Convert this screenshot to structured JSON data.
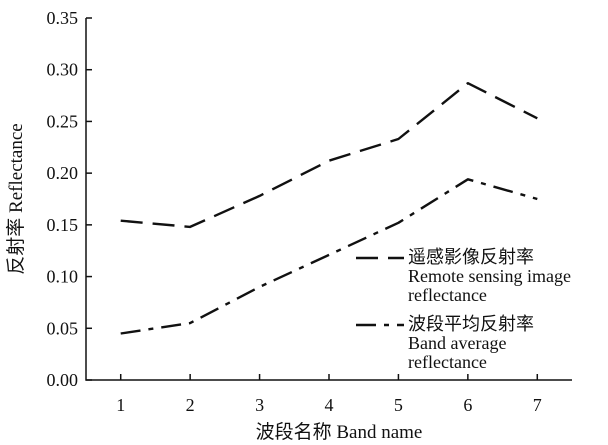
{
  "chart_data": {
    "type": "line",
    "x": [
      1,
      2,
      3,
      4,
      5,
      6,
      7
    ],
    "xlabel": "波段名称 Band name",
    "ylabel": "反射率 Reflectance",
    "xlim": [
      0.5,
      7.5
    ],
    "ylim": [
      0,
      0.35
    ],
    "x_ticks": [
      "1",
      "2",
      "3",
      "4",
      "5",
      "6",
      "7"
    ],
    "y_ticks": [
      "0.00",
      "0.05",
      "0.10",
      "0.15",
      "0.20",
      "0.25",
      "0.30",
      "0.35"
    ],
    "grid": false,
    "legend_position": "right",
    "series": [
      {
        "name": "遥感影像反射率\nRemote sensing image\nreflectance",
        "legend_lines": [
          "遥感影像反射率",
          "Remote sensing image",
          "reflectance"
        ],
        "style": "dashed",
        "color": "#111111",
        "values": [
          0.154,
          0.148,
          0.178,
          0.212,
          0.233,
          0.287,
          0.253
        ]
      },
      {
        "name": "波段平均反射率\nBand average\nreflectance",
        "legend_lines": [
          "波段平均反射率",
          "Band average",
          "reflectance"
        ],
        "style": "dashdot",
        "color": "#111111",
        "values": [
          0.045,
          0.055,
          0.09,
          0.121,
          0.152,
          0.194,
          0.175
        ]
      }
    ]
  }
}
